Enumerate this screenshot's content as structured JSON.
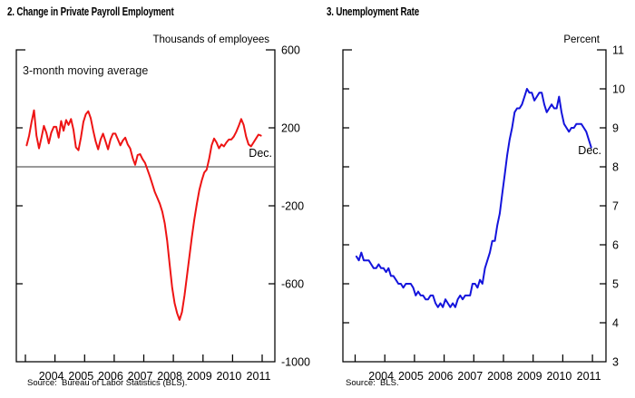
{
  "chart_data": [
    {
      "id": "payroll",
      "type": "line",
      "title": "2. Change in Private Payroll Employment",
      "unit_label": "Thousands of employees",
      "annotation": "3-month moving average",
      "end_label": "Dec.",
      "source": "Source:  Bureau of Labor Statistics (BLS).",
      "frequency": "monthly",
      "x_start": "2004-01",
      "x_end": "2011-12",
      "x_tick_labels": [
        "2004",
        "2005",
        "2006",
        "2007",
        "2008",
        "2009",
        "2010",
        "2011"
      ],
      "ylim": [
        -1000,
        600
      ],
      "y_tick_labels": [
        600,
        200,
        -200,
        -600,
        -1000
      ],
      "y_tick_marks": [
        200,
        -200,
        -600
      ],
      "zero_line": true,
      "grid": false,
      "legend_position": "none",
      "series": [
        {
          "name": "Change in private payroll employment, 3-month moving average (thousands)",
          "color": "#ee1414",
          "values": [
            110,
            160,
            230,
            290,
            160,
            95,
            150,
            210,
            175,
            120,
            175,
            205,
            205,
            150,
            235,
            185,
            240,
            215,
            245,
            190,
            100,
            85,
            150,
            230,
            270,
            285,
            250,
            185,
            130,
            90,
            140,
            170,
            130,
            90,
            140,
            170,
            170,
            140,
            110,
            135,
            150,
            115,
            95,
            45,
            10,
            60,
            65,
            40,
            20,
            -15,
            -50,
            -90,
            -130,
            -160,
            -190,
            -230,
            -290,
            -380,
            -500,
            -620,
            -700,
            -750,
            -785,
            -745,
            -660,
            -560,
            -460,
            -360,
            -270,
            -190,
            -120,
            -70,
            -30,
            -15,
            40,
            110,
            145,
            125,
            95,
            115,
            105,
            125,
            140,
            140,
            155,
            180,
            210,
            245,
            215,
            155,
            115,
            105,
            125,
            145,
            165,
            160
          ]
        }
      ]
    },
    {
      "id": "unemployment",
      "type": "line",
      "title": "3. Unemployment Rate",
      "unit_label": "Percent",
      "end_label": "Dec.",
      "source": "Source:  BLS.",
      "frequency": "monthly",
      "x_start": "2004-01",
      "x_end": "2011-12",
      "x_tick_labels": [
        "2004",
        "2005",
        "2006",
        "2007",
        "2008",
        "2009",
        "2010",
        "2011"
      ],
      "ylim": [
        3,
        11
      ],
      "y_tick_labels": [
        11,
        10,
        9,
        8,
        7,
        6,
        5,
        4,
        3
      ],
      "y_tick_marks": [
        4,
        5,
        6,
        7,
        8,
        9,
        10
      ],
      "zero_line": false,
      "grid": false,
      "legend_position": "none",
      "series": [
        {
          "name": "Civilian unemployment rate (percent)",
          "color": "#1414dc",
          "values": [
            5.7,
            5.6,
            5.8,
            5.6,
            5.6,
            5.6,
            5.5,
            5.4,
            5.4,
            5.5,
            5.4,
            5.4,
            5.3,
            5.4,
            5.2,
            5.2,
            5.1,
            5.0,
            5.0,
            4.9,
            5.0,
            5.0,
            5.0,
            4.9,
            4.7,
            4.8,
            4.7,
            4.7,
            4.6,
            4.6,
            4.7,
            4.7,
            4.5,
            4.4,
            4.5,
            4.4,
            4.6,
            4.5,
            4.4,
            4.5,
            4.4,
            4.6,
            4.7,
            4.6,
            4.7,
            4.7,
            4.7,
            5.0,
            5.0,
            4.9,
            5.1,
            5.0,
            5.4,
            5.6,
            5.8,
            6.1,
            6.1,
            6.5,
            6.8,
            7.3,
            7.8,
            8.3,
            8.7,
            9.0,
            9.4,
            9.5,
            9.5,
            9.6,
            9.8,
            10.0,
            9.9,
            9.9,
            9.7,
            9.8,
            9.9,
            9.9,
            9.6,
            9.4,
            9.5,
            9.6,
            9.5,
            9.5,
            9.8,
            9.4,
            9.1,
            9.0,
            8.9,
            9.0,
            9.0,
            9.1,
            9.1,
            9.1,
            9.0,
            8.9,
            8.7,
            8.5
          ]
        }
      ]
    }
  ]
}
